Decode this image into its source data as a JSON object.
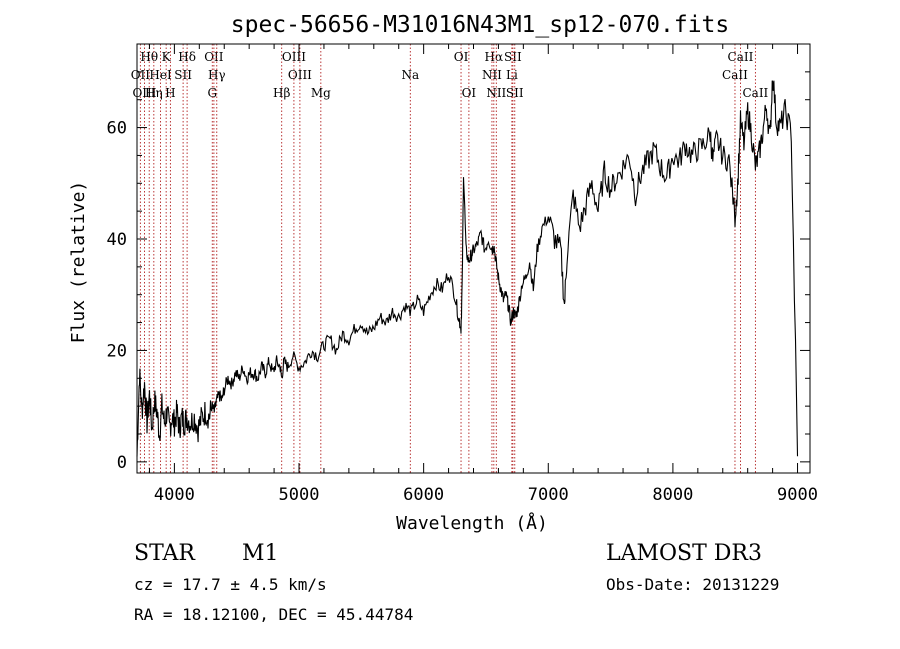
{
  "chart_data": {
    "type": "line",
    "title": "spec-56656-M31016N43M1_sp12-070.fits",
    "xlabel": "Wavelength (Å)",
    "ylabel": "Flux (relative)",
    "xlim": [
      3700,
      9100
    ],
    "ylim": [
      -2,
      75
    ],
    "xticks": [
      4000,
      5000,
      6000,
      7000,
      8000,
      9000
    ],
    "yticks": [
      0,
      20,
      40,
      60
    ],
    "line_color": "#000000",
    "marker_color": "#b22222",
    "spectrum": {
      "x": [
        3700,
        3720,
        3740,
        3760,
        3780,
        3800,
        3820,
        3840,
        3860,
        3880,
        3900,
        3920,
        3940,
        3960,
        3980,
        4000,
        4020,
        4040,
        4060,
        4080,
        4100,
        4130,
        4160,
        4190,
        4220,
        4250,
        4280,
        4300,
        4320,
        4340,
        4360,
        4380,
        4400,
        4430,
        4460,
        4490,
        4520,
        4550,
        4580,
        4610,
        4640,
        4670,
        4700,
        4730,
        4760,
        4790,
        4820,
        4850,
        4860,
        4880,
        4910,
        4950,
        5000,
        5050,
        5100,
        5150,
        5200,
        5250,
        5300,
        5350,
        5400,
        5450,
        5500,
        5550,
        5600,
        5650,
        5700,
        5750,
        5800,
        5850,
        5900,
        5950,
        6000,
        6050,
        6100,
        6150,
        6200,
        6250,
        6280,
        6300,
        6310,
        6320,
        6340,
        6360,
        6380,
        6400,
        6430,
        6460,
        6490,
        6520,
        6550,
        6563,
        6580,
        6600,
        6620,
        6640,
        6660,
        6680,
        6700,
        6720,
        6740,
        6760,
        6790,
        6820,
        6850,
        6880,
        6910,
        6950,
        7000,
        7050,
        7100,
        7130,
        7150,
        7200,
        7250,
        7300,
        7350,
        7400,
        7450,
        7500,
        7550,
        7600,
        7650,
        7700,
        7750,
        7800,
        7850,
        7900,
        7950,
        8000,
        8050,
        8100,
        8150,
        8200,
        8250,
        8300,
        8320,
        8350,
        8400,
        8450,
        8498,
        8520,
        8542,
        8570,
        8600,
        8630,
        8662,
        8690,
        8720,
        8750,
        8780,
        8800,
        8830,
        8860,
        8900,
        8950,
        9000
      ],
      "y": [
        1,
        16,
        9,
        14,
        7,
        12,
        6,
        11,
        9,
        5,
        10,
        7,
        9,
        6,
        8,
        7,
        9,
        6,
        8,
        7,
        8,
        7,
        8,
        6,
        8,
        9,
        8,
        10,
        9,
        11,
        12,
        11,
        13,
        15,
        14,
        16,
        15,
        17,
        15,
        16,
        16,
        15,
        17,
        16,
        18,
        16,
        18,
        17,
        15,
        18,
        17,
        19,
        17,
        18,
        20,
        19,
        21,
        22,
        20,
        23,
        22,
        24,
        25,
        23,
        24,
        26,
        25,
        27,
        26,
        28,
        27,
        29,
        27,
        30,
        32,
        31,
        34,
        30,
        26,
        24,
        33,
        52,
        38,
        36,
        37,
        38,
        39,
        41,
        38,
        40,
        38,
        39,
        36,
        33,
        31,
        29,
        30,
        28,
        25,
        27,
        26,
        28,
        32,
        33,
        36,
        31,
        38,
        42,
        44,
        40,
        38,
        28,
        37,
        48,
        42,
        46,
        50,
        45,
        52,
        49,
        51,
        53,
        55,
        48,
        52,
        54,
        56,
        53,
        51,
        55,
        54,
        57,
        55,
        56,
        57,
        59,
        54,
        58,
        55,
        54,
        44,
        50,
        61,
        57,
        63,
        59,
        53,
        55,
        59,
        64,
        58,
        70,
        61,
        60,
        63,
        59,
        1
      ]
    },
    "line_markers": [
      {
        "label": "Hθ",
        "wave": 3798,
        "row": 1
      },
      {
        "label": "K",
        "wave": 3934,
        "row": 1
      },
      {
        "label": "Hδ",
        "wave": 4102,
        "row": 1
      },
      {
        "label": "OII",
        "wave": 4317,
        "row": 1
      },
      {
        "label": "OIII",
        "wave": 4959,
        "row": 1
      },
      {
        "label": "OI",
        "wave": 6300,
        "row": 1
      },
      {
        "label": "Hα",
        "wave": 6563,
        "row": 1
      },
      {
        "label": "SII",
        "wave": 6716,
        "row": 1
      },
      {
        "label": "CaII",
        "wave": 8542,
        "row": 1
      },
      {
        "label": "OII",
        "wave": 3727,
        "row": 2
      },
      {
        "label": "HeI",
        "wave": 3889,
        "row": 2
      },
      {
        "label": "SII",
        "wave": 4070,
        "row": 2
      },
      {
        "label": "Hγ",
        "wave": 4340,
        "row": 2
      },
      {
        "label": "OIII",
        "wave": 5007,
        "row": 2
      },
      {
        "label": "Na",
        "wave": 5893,
        "row": 2
      },
      {
        "label": "NII",
        "wave": 6548,
        "row": 2
      },
      {
        "label": "Li",
        "wave": 6708,
        "row": 2
      },
      {
        "label": "CaII",
        "wave": 8498,
        "row": 2
      },
      {
        "label": "OIII",
        "wave": 3760,
        "row": 3
      },
      {
        "label": "Hη",
        "wave": 3835,
        "row": 3
      },
      {
        "label": "H",
        "wave": 3968,
        "row": 3
      },
      {
        "label": "G",
        "wave": 4304,
        "row": 3
      },
      {
        "label": "Hβ",
        "wave": 4861,
        "row": 3
      },
      {
        "label": "Mg",
        "wave": 5175,
        "row": 3
      },
      {
        "label": "OI",
        "wave": 6363,
        "row": 3
      },
      {
        "label": "NII",
        "wave": 6583,
        "row": 3
      },
      {
        "label": "SII",
        "wave": 6731,
        "row": 3
      },
      {
        "label": "CaII",
        "wave": 8662,
        "row": 3
      }
    ]
  },
  "info": {
    "class_label": "STAR",
    "subclass_label": "M1",
    "survey_label": "LAMOST DR3",
    "cz_text": "cz = 17.7 ± 4.5 km/s",
    "obs_date_text": "Obs-Date: 20131229",
    "radec_text": "RA =  18.12100, DEC =  45.44784"
  }
}
